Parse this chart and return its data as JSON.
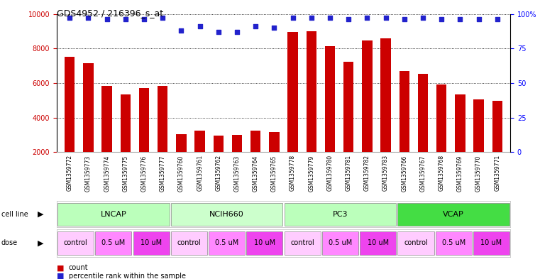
{
  "title": "GDS4952 / 216396_s_at",
  "samples": [
    "GSM1359772",
    "GSM1359773",
    "GSM1359774",
    "GSM1359775",
    "GSM1359776",
    "GSM1359777",
    "GSM1359760",
    "GSM1359761",
    "GSM1359762",
    "GSM1359763",
    "GSM1359764",
    "GSM1359765",
    "GSM1359778",
    "GSM1359779",
    "GSM1359780",
    "GSM1359781",
    "GSM1359782",
    "GSM1359783",
    "GSM1359766",
    "GSM1359767",
    "GSM1359768",
    "GSM1359769",
    "GSM1359770",
    "GSM1359771"
  ],
  "counts": [
    7500,
    7150,
    5850,
    5350,
    5700,
    5850,
    3050,
    3250,
    2950,
    3000,
    3250,
    3150,
    8950,
    9000,
    8150,
    7250,
    8450,
    8600,
    6700,
    6550,
    5900,
    5350,
    5050,
    4950
  ],
  "percentile_ranks": [
    97,
    97,
    96,
    96,
    96,
    97,
    88,
    91,
    87,
    87,
    91,
    90,
    97,
    97,
    97,
    96,
    97,
    97,
    96,
    97,
    96,
    96,
    96,
    96
  ],
  "cell_lines": [
    {
      "label": "LNCAP",
      "start": 0,
      "end": 6,
      "color": "#bbffbb"
    },
    {
      "label": "NCIH660",
      "start": 6,
      "end": 12,
      "color": "#ccffcc"
    },
    {
      "label": "PC3",
      "start": 12,
      "end": 18,
      "color": "#bbffbb"
    },
    {
      "label": "VCAP",
      "start": 18,
      "end": 24,
      "color": "#44dd44"
    }
  ],
  "doses": [
    {
      "label": "control",
      "start": 0,
      "end": 2,
      "color": "#ffccff"
    },
    {
      "label": "0.5 uM",
      "start": 2,
      "end": 4,
      "color": "#ff88ff"
    },
    {
      "label": "10 uM",
      "start": 4,
      "end": 6,
      "color": "#ee44ee"
    },
    {
      "label": "control",
      "start": 6,
      "end": 8,
      "color": "#ffccff"
    },
    {
      "label": "0.5 uM",
      "start": 8,
      "end": 10,
      "color": "#ff88ff"
    },
    {
      "label": "10 uM",
      "start": 10,
      "end": 12,
      "color": "#ee44ee"
    },
    {
      "label": "control",
      "start": 12,
      "end": 14,
      "color": "#ffccff"
    },
    {
      "label": "0.5 uM",
      "start": 14,
      "end": 16,
      "color": "#ff88ff"
    },
    {
      "label": "10 uM",
      "start": 16,
      "end": 18,
      "color": "#ee44ee"
    },
    {
      "label": "control",
      "start": 18,
      "end": 20,
      "color": "#ffccff"
    },
    {
      "label": "0.5 uM",
      "start": 20,
      "end": 22,
      "color": "#ff88ff"
    },
    {
      "label": "10 uM",
      "start": 22,
      "end": 24,
      "color": "#ee44ee"
    }
  ],
  "bar_color": "#cc0000",
  "dot_color": "#2222cc",
  "ymin": 2000,
  "ymax": 10000,
  "yticks": [
    2000,
    4000,
    6000,
    8000,
    10000
  ],
  "y2ticks": [
    0,
    25,
    50,
    75,
    100
  ],
  "y2labels": [
    "0",
    "25",
    "50",
    "75",
    "100%"
  ],
  "bg_color": "#ffffff",
  "grid_color": "#555555",
  "tick_label_area_color": "#cccccc"
}
